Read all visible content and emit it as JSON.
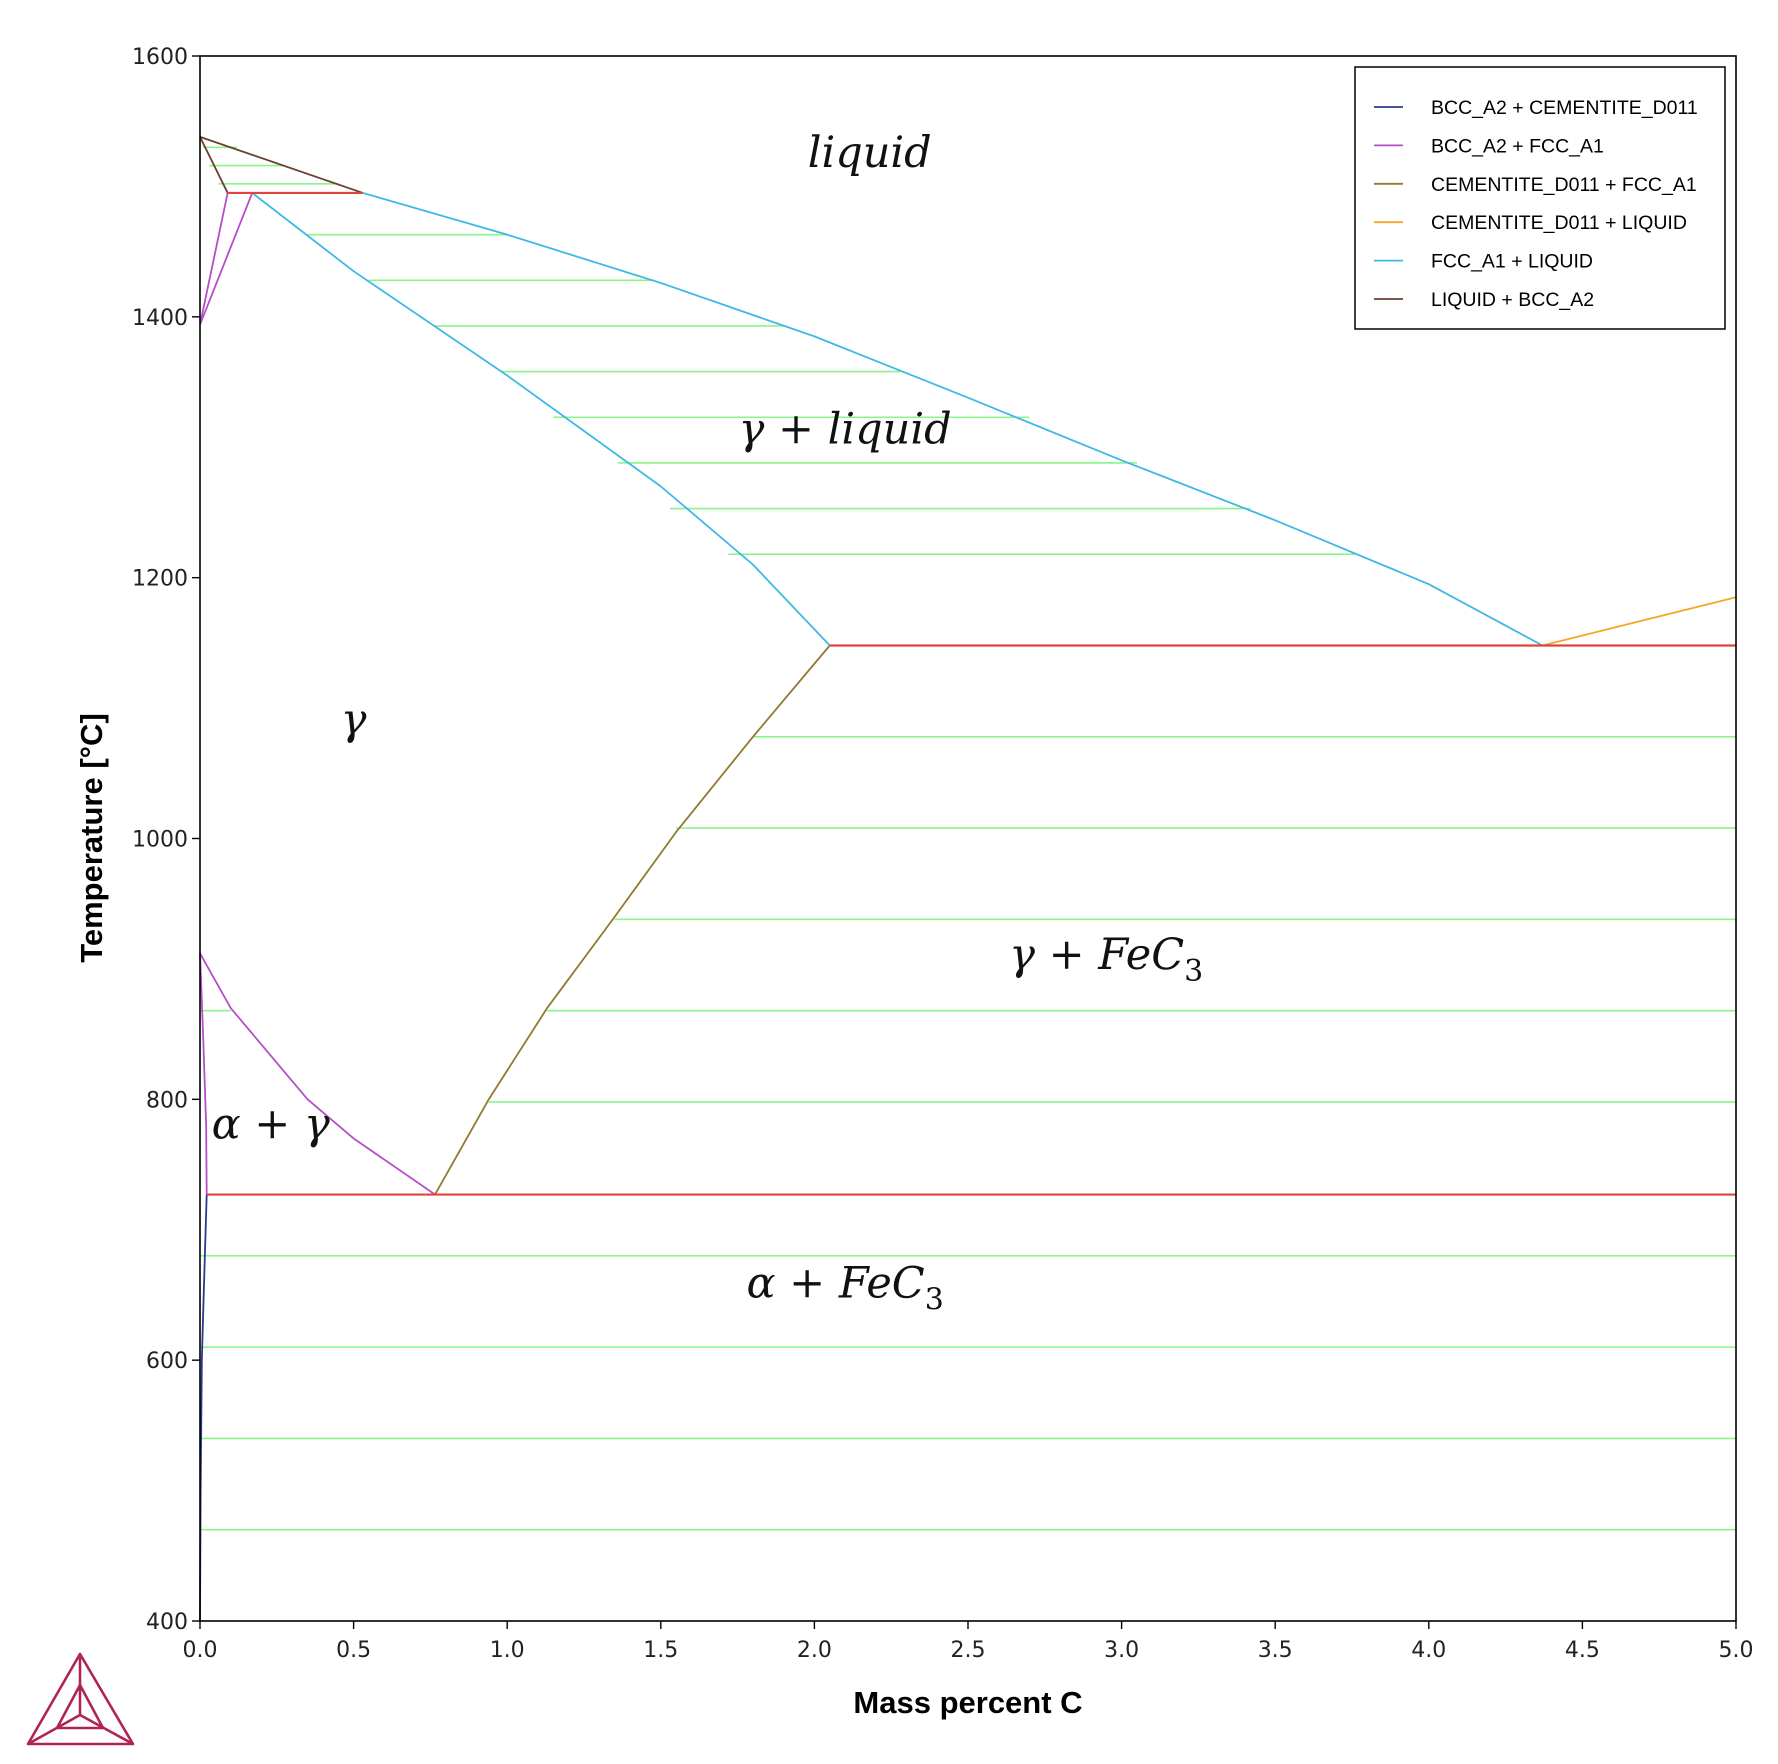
{
  "chart_data": {
    "type": "line",
    "title": "",
    "xlabel": "Mass percent C",
    "ylabel": "Temperature [°C]",
    "xlim": [
      0,
      5
    ],
    "ylim": [
      400,
      1600
    ],
    "grid": false,
    "legend_position": "top-right",
    "x_ticks": [
      "0.0",
      "0.5",
      "1.0",
      "1.5",
      "2.0",
      "2.5",
      "3.0",
      "3.5",
      "4.0",
      "4.5",
      "5.0"
    ],
    "y_ticks": [
      "400",
      "600",
      "800",
      "1000",
      "1200",
      "1400",
      "1600"
    ],
    "series": [
      {
        "name": "BCC_A2 + CEMENTITE_D011",
        "color": "#2b3a8f",
        "lines": [
          [
            [
              0.0218,
              727
            ],
            [
              0.012,
              650
            ],
            [
              0.006,
              600
            ],
            [
              0.002,
              500
            ],
            [
              0.0,
              400
            ]
          ]
        ]
      },
      {
        "name": "BCC_A2 + FCC_A1",
        "color": "#b54fc8",
        "lines": [
          [
            [
              0.0,
              1394
            ],
            [
              0.09,
              1495
            ]
          ],
          [
            [
              0.0,
              1394
            ],
            [
              0.17,
              1495
            ]
          ],
          [
            [
              0.0,
              912
            ],
            [
              0.1,
              870
            ],
            [
              0.35,
              800
            ],
            [
              0.5,
              770
            ],
            [
              0.765,
              727
            ]
          ],
          [
            [
              0.0,
              912
            ],
            [
              0.01,
              850
            ],
            [
              0.02,
              780
            ],
            [
              0.0218,
              727
            ]
          ]
        ]
      },
      {
        "name": "CEMENTITE_D011 + FCC_A1",
        "color": "#8f7a2f",
        "lines": [
          [
            [
              0.765,
              727
            ],
            [
              0.94,
              800
            ],
            [
              1.13,
              870
            ],
            [
              1.35,
              940
            ],
            [
              1.55,
              1005
            ],
            [
              1.8,
              1078
            ],
            [
              2.05,
              1148
            ]
          ]
        ]
      },
      {
        "name": "CEMENTITE_D011 + LIQUID",
        "color": "#f6a62b",
        "lines": [
          [
            [
              4.37,
              1148
            ],
            [
              5.0,
              1185
            ]
          ]
        ]
      },
      {
        "name": "FCC_A1 + LIQUID",
        "color": "#3fb8e6",
        "lines": [
          [
            [
              0.53,
              1495
            ],
            [
              1.0,
              1463
            ],
            [
              1.5,
              1426
            ],
            [
              2.0,
              1385
            ],
            [
              2.5,
              1338
            ],
            [
              3.0,
              1290
            ],
            [
              3.5,
              1244
            ],
            [
              4.0,
              1195
            ],
            [
              4.37,
              1148
            ]
          ],
          [
            [
              0.17,
              1495
            ],
            [
              0.5,
              1435
            ],
            [
              1.0,
              1355
            ],
            [
              1.5,
              1270
            ],
            [
              1.8,
              1210
            ],
            [
              2.05,
              1148
            ]
          ]
        ]
      },
      {
        "name": "LIQUID + BCC_A2",
        "color": "#6b3f2e",
        "lines": [
          [
            [
              0.0,
              1538
            ],
            [
              0.53,
              1495
            ]
          ],
          [
            [
              0.0,
              1538
            ],
            [
              0.09,
              1495
            ]
          ]
        ]
      }
    ],
    "invariant_lines": [
      {
        "color": "#e0453a",
        "x": [
          0.09,
          0.53
        ],
        "y": 1495
      },
      {
        "color": "#e0453a",
        "x": [
          2.05,
          5.0
        ],
        "y": 1148
      },
      {
        "color": "#e0453a",
        "x": [
          0.0218,
          5.0
        ],
        "y": 727
      }
    ],
    "tie_lines": {
      "color": "#8af58a",
      "lines": [
        {
          "y": 1530,
          "x": [
            0.01,
            0.12
          ]
        },
        {
          "y": 1516,
          "x": [
            0.03,
            0.27
          ]
        },
        {
          "y": 1502,
          "x": [
            0.06,
            0.45
          ]
        },
        {
          "y": 1463,
          "x": [
            0.35,
            1.0
          ]
        },
        {
          "y": 1428,
          "x": [
            0.55,
            1.48
          ]
        },
        {
          "y": 1393,
          "x": [
            0.76,
            1.9
          ]
        },
        {
          "y": 1358,
          "x": [
            0.98,
            2.28
          ]
        },
        {
          "y": 1323,
          "x": [
            1.15,
            2.7
          ]
        },
        {
          "y": 1288,
          "x": [
            1.36,
            3.05
          ]
        },
        {
          "y": 1253,
          "x": [
            1.53,
            3.42
          ]
        },
        {
          "y": 1218,
          "x": [
            1.72,
            3.76
          ]
        },
        {
          "y": 1078,
          "x": [
            1.8,
            5.0
          ]
        },
        {
          "y": 1008,
          "x": [
            1.55,
            5.0
          ]
        },
        {
          "y": 938,
          "x": [
            1.35,
            5.0
          ]
        },
        {
          "y": 868,
          "x": [
            1.13,
            5.0
          ]
        },
        {
          "y": 798,
          "x": [
            0.94,
            5.0
          ]
        },
        {
          "y": 868,
          "x": [
            0.0,
            0.1
          ]
        },
        {
          "y": 680,
          "x": [
            0.0,
            5.0
          ]
        },
        {
          "y": 610,
          "x": [
            0.0,
            5.0
          ]
        },
        {
          "y": 540,
          "x": [
            0.0,
            5.0
          ]
        },
        {
          "y": 470,
          "x": [
            0.0,
            5.0
          ]
        }
      ]
    },
    "region_labels": [
      {
        "text": "liquid",
        "x": 2.18,
        "y": 1515
      },
      {
        "text": "γ + liquid",
        "x": 2.1,
        "y": 1303
      },
      {
        "text": "γ",
        "x": 0.5,
        "y": 1080
      },
      {
        "text": "γ + FeC",
        "sub": "3",
        "x": 2.95,
        "y": 900
      },
      {
        "text": "α + γ",
        "x": 0.23,
        "y": 770
      },
      {
        "text": "α + FeC",
        "sub": "3",
        "x": 2.1,
        "y": 648
      }
    ]
  },
  "logo": {
    "name": "Thermo-Calc",
    "color": "#b0254f"
  }
}
